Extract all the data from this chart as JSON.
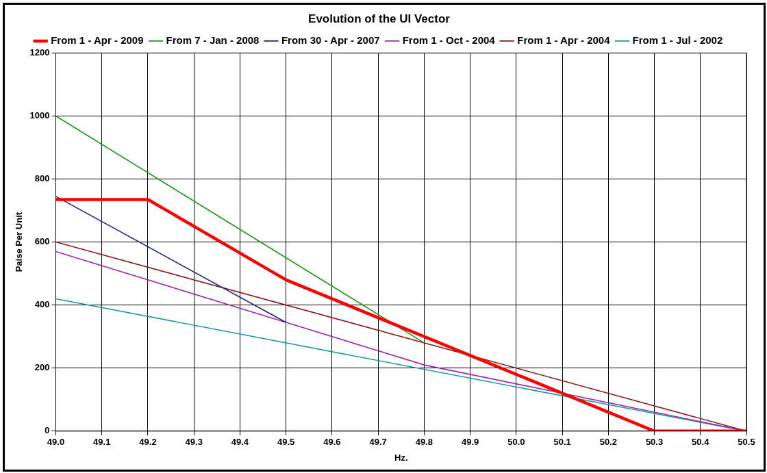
{
  "chart_data": {
    "type": "line",
    "title": "Evolution of the UI Vector",
    "xlabel": "Hz.",
    "ylabel": "Paise Per Unit",
    "xlim": [
      49.0,
      50.5
    ],
    "xticks": [
      {
        "value": 49.0,
        "label": "49.0"
      },
      {
        "value": 49.1,
        "label": "49.1"
      },
      {
        "value": 49.2,
        "label": "49.2"
      },
      {
        "value": 49.3,
        "label": "49.3"
      },
      {
        "value": 49.4,
        "label": "49.4"
      },
      {
        "value": 49.5,
        "label": "49.5"
      },
      {
        "value": 49.6,
        "label": "49.6"
      },
      {
        "value": 49.7,
        "label": "49.7"
      },
      {
        "value": 49.8,
        "label": "49.8"
      },
      {
        "value": 49.9,
        "label": "49.9"
      },
      {
        "value": 50.0,
        "label": "50.0"
      },
      {
        "value": 50.1,
        "label": "50.1"
      },
      {
        "value": 50.2,
        "label": "50.2"
      },
      {
        "value": 50.3,
        "label": "50.3"
      },
      {
        "value": 50.4,
        "label": "50.4"
      },
      {
        "value": 50.5,
        "label": "50.5"
      }
    ],
    "ylim": [
      0,
      1200
    ],
    "yticks": [
      0,
      200,
      400,
      600,
      800,
      1000,
      1200
    ],
    "grid": true,
    "legend": "top",
    "marker": "none",
    "line_style": "solid",
    "series": [
      {
        "name": "From 1 - Apr - 2009",
        "color": "#ff0000",
        "x": [
          49.0,
          49.2,
          49.5,
          50.3,
          50.5
        ],
        "values": [
          735,
          735,
          480,
          0,
          0
        ]
      },
      {
        "name": "From 7 - Jan - 2008",
        "color": "#1a9a1a",
        "x": [
          49.0,
          49.8
        ],
        "values": [
          1000,
          280
        ]
      },
      {
        "name": "From 30 - Apr - 2007",
        "color": "#1a237e",
        "x": [
          49.0,
          49.5
        ],
        "values": [
          745,
          345
        ]
      },
      {
        "name": "From 1 - Oct - 2004",
        "color": "#9c27b0",
        "x": [
          49.0,
          49.5,
          49.8,
          50.5
        ],
        "values": [
          570,
          345,
          210,
          0
        ]
      },
      {
        "name": "From 1 - Apr - 2004",
        "color": "#8b1a1a",
        "x": [
          49.0,
          50.5
        ],
        "values": [
          600,
          0
        ]
      },
      {
        "name": "From 1 - Jul - 2002",
        "color": "#1a9a9a",
        "x": [
          49.0,
          50.5
        ],
        "values": [
          420,
          0
        ]
      }
    ]
  }
}
